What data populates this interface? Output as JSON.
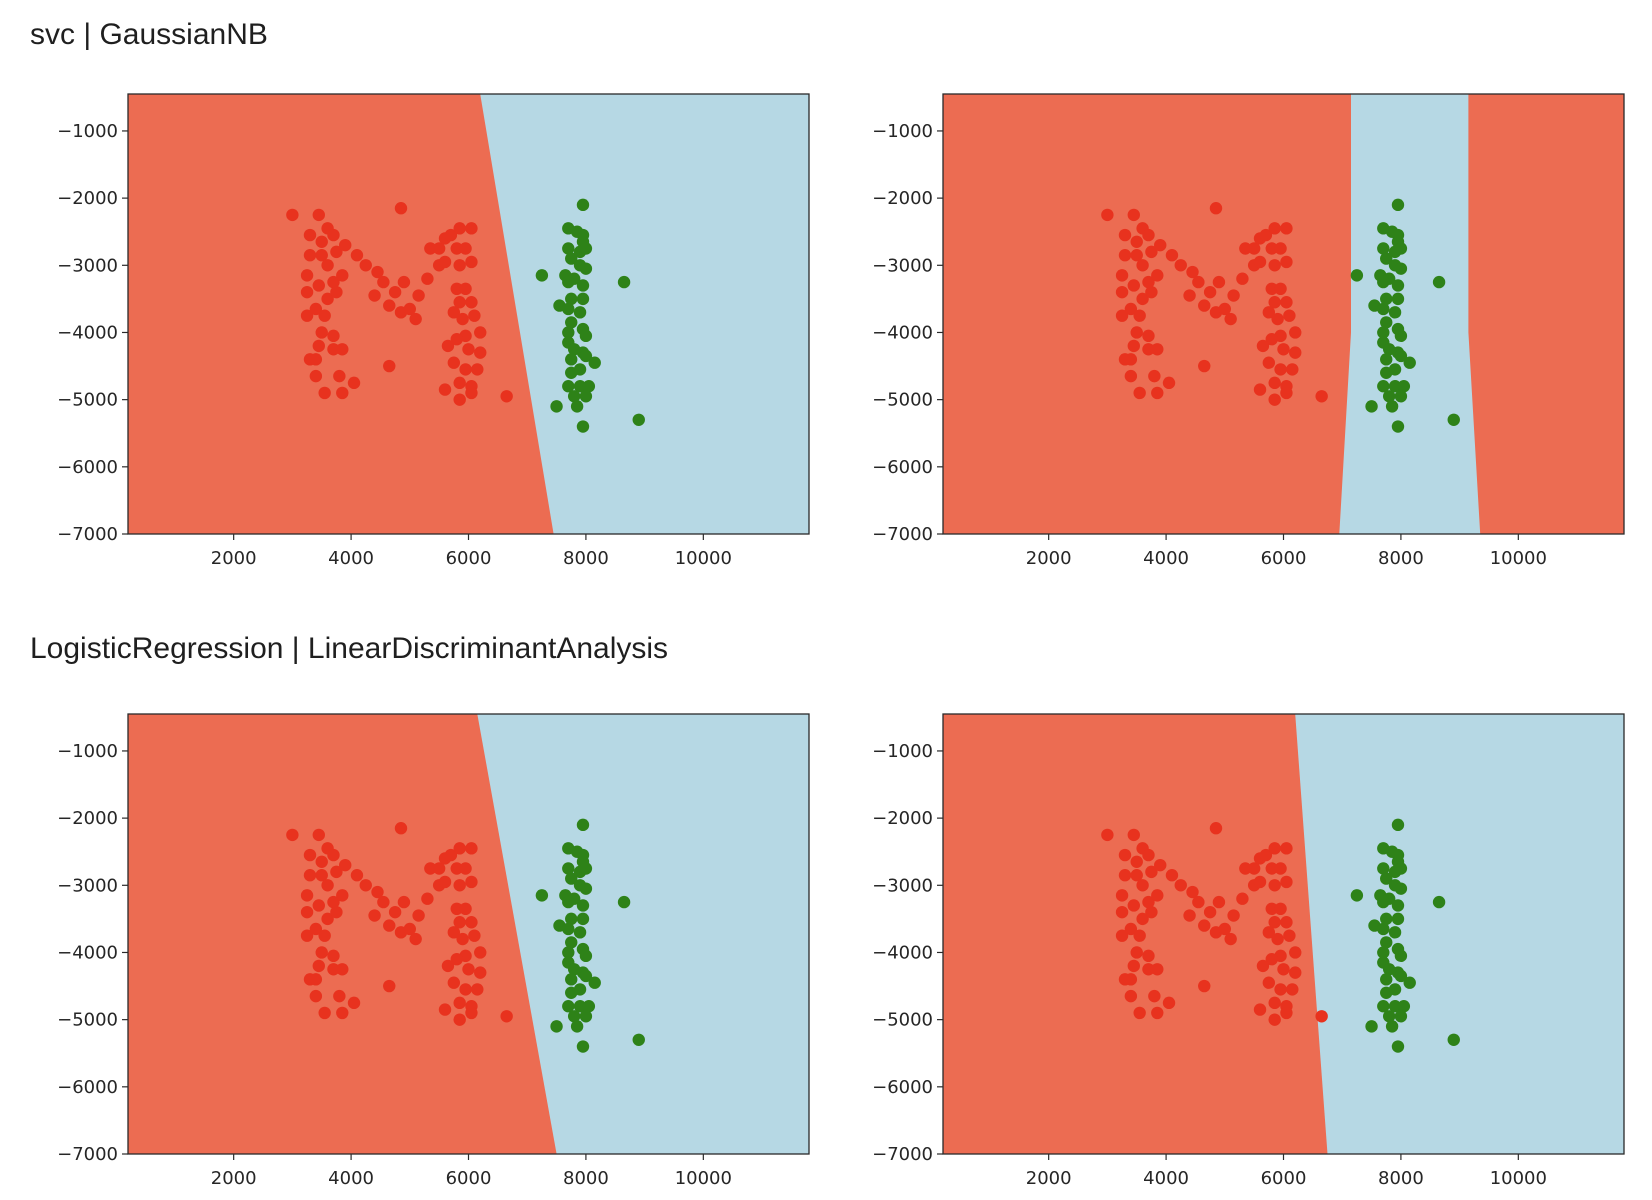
{
  "sections": [
    {
      "title": "svc | GaussianNB"
    },
    {
      "title": "LogisticRegression | LinearDiscriminantAnalysis"
    }
  ],
  "colors": {
    "region_red": "#ec6c52",
    "region_blue": "#b6d8e4",
    "point_red": "#e8321e",
    "point_green": "#2e8218",
    "axes_edge": "#2a2a2a"
  },
  "chart_data": [
    {
      "type": "scatter",
      "subplot": "svc",
      "xlim": [
        200,
        11800
      ],
      "ylim": [
        -7000,
        -450
      ],
      "xticks": [
        2000,
        4000,
        6000,
        8000,
        10000
      ],
      "xtick_labels": [
        "2000",
        "4000",
        "6000",
        "8000",
        "10000"
      ],
      "yticks": [
        -1000,
        -2000,
        -3000,
        -4000,
        -5000,
        -6000,
        -7000
      ],
      "ytick_labels": [
        "−1000",
        "−2000",
        "−3000",
        "−4000",
        "−5000",
        "−6000",
        "−7000"
      ],
      "decision_regions": {
        "boundary": "line",
        "points": [
          [
            6200,
            -450
          ],
          [
            7450,
            -7000
          ]
        ],
        "left": "red",
        "right": "blue"
      },
      "grid": false,
      "legend": "none"
    },
    {
      "type": "scatter",
      "subplot": "GaussianNB",
      "xlim": [
        200,
        11800
      ],
      "ylim": [
        -7000,
        -450
      ],
      "xticks": [
        2000,
        4000,
        6000,
        8000,
        10000
      ],
      "xtick_labels": [
        "2000",
        "4000",
        "6000",
        "8000",
        "10000"
      ],
      "yticks": [
        -1000,
        -2000,
        -3000,
        -4000,
        -5000,
        -6000,
        -7000
      ],
      "ytick_labels": [
        "−1000",
        "−2000",
        "−3000",
        "−4000",
        "−5000",
        "−6000",
        "−7000"
      ],
      "decision_regions": {
        "boundary": "band",
        "left": [
          [
            7150,
            -450
          ],
          [
            7150,
            -4000
          ],
          [
            6950,
            -7000
          ]
        ],
        "right": [
          [
            9150,
            -450
          ],
          [
            9150,
            -4000
          ],
          [
            9350,
            -7000
          ]
        ],
        "outside": "red",
        "inside": "blue"
      },
      "grid": false,
      "legend": "none"
    },
    {
      "type": "scatter",
      "subplot": "LogisticRegression",
      "xlim": [
        200,
        11800
      ],
      "ylim": [
        -7000,
        -450
      ],
      "xticks": [
        2000,
        4000,
        6000,
        8000,
        10000
      ],
      "xtick_labels": [
        "2000",
        "4000",
        "6000",
        "8000",
        "10000"
      ],
      "yticks": [
        -1000,
        -2000,
        -3000,
        -4000,
        -5000,
        -6000,
        -7000
      ],
      "ytick_labels": [
        "−1000",
        "−2000",
        "−3000",
        "−4000",
        "−5000",
        "−6000",
        "−7000"
      ],
      "decision_regions": {
        "boundary": "line",
        "points": [
          [
            6150,
            -450
          ],
          [
            7500,
            -7000
          ]
        ],
        "left": "red",
        "right": "blue"
      },
      "grid": false,
      "legend": "none"
    },
    {
      "type": "scatter",
      "subplot": "LinearDiscriminantAnalysis",
      "xlim": [
        200,
        11800
      ],
      "ylim": [
        -7000,
        -450
      ],
      "xticks": [
        2000,
        4000,
        6000,
        8000,
        10000
      ],
      "xtick_labels": [
        "2000",
        "4000",
        "6000",
        "8000",
        "10000"
      ],
      "yticks": [
        -1000,
        -2000,
        -3000,
        -4000,
        -5000,
        -6000,
        -7000
      ],
      "ytick_labels": [
        "−1000",
        "−2000",
        "−3000",
        "−4000",
        "−5000",
        "−6000",
        "−7000"
      ],
      "decision_regions": {
        "boundary": "line",
        "points": [
          [
            6200,
            -450
          ],
          [
            6750,
            -7000
          ]
        ],
        "left": "red",
        "right": "blue"
      },
      "grid": false,
      "legend": "none"
    }
  ],
  "points": {
    "red": [
      [
        3000,
        -2250
      ],
      [
        3450,
        -2250
      ],
      [
        3300,
        -2550
      ],
      [
        3600,
        -2450
      ],
      [
        3500,
        -2650
      ],
      [
        3700,
        -2550
      ],
      [
        3300,
        -2850
      ],
      [
        3500,
        -2850
      ],
      [
        3750,
        -2800
      ],
      [
        3900,
        -2700
      ],
      [
        3600,
        -3000
      ],
      [
        4100,
        -2850
      ],
      [
        4250,
        -3000
      ],
      [
        4450,
        -3100
      ],
      [
        3250,
        -3150
      ],
      [
        3250,
        -3400
      ],
      [
        3450,
        -3300
      ],
      [
        3700,
        -3250
      ],
      [
        3850,
        -3150
      ],
      [
        3250,
        -3750
      ],
      [
        3400,
        -3650
      ],
      [
        3600,
        -3500
      ],
      [
        3750,
        -3400
      ],
      [
        3550,
        -3750
      ],
      [
        3500,
        -4000
      ],
      [
        3700,
        -4050
      ],
      [
        3450,
        -4200
      ],
      [
        3700,
        -4250
      ],
      [
        3850,
        -4250
      ],
      [
        3300,
        -4400
      ],
      [
        3400,
        -4400
      ],
      [
        3400,
        -4650
      ],
      [
        3800,
        -4650
      ],
      [
        3550,
        -4900
      ],
      [
        3850,
        -4900
      ],
      [
        4050,
        -4750
      ],
      [
        4850,
        -2150
      ],
      [
        4550,
        -3250
      ],
      [
        4400,
        -3450
      ],
      [
        4750,
        -3400
      ],
      [
        4900,
        -3250
      ],
      [
        4650,
        -3600
      ],
      [
        4850,
        -3700
      ],
      [
        5000,
        -3650
      ],
      [
        5150,
        -3450
      ],
      [
        5300,
        -3200
      ],
      [
        5100,
        -3800
      ],
      [
        4650,
        -4500
      ],
      [
        5350,
        -2750
      ],
      [
        5500,
        -2750
      ],
      [
        5600,
        -2600
      ],
      [
        5700,
        -2550
      ],
      [
        5850,
        -2450
      ],
      [
        6050,
        -2450
      ],
      [
        5500,
        -3000
      ],
      [
        5600,
        -2950
      ],
      [
        5800,
        -2750
      ],
      [
        5950,
        -2750
      ],
      [
        6050,
        -2950
      ],
      [
        5850,
        -3000
      ],
      [
        5800,
        -3350
      ],
      [
        5950,
        -3350
      ],
      [
        6050,
        -3550
      ],
      [
        5850,
        -3550
      ],
      [
        5750,
        -3700
      ],
      [
        5900,
        -3800
      ],
      [
        6100,
        -3750
      ],
      [
        6200,
        -4000
      ],
      [
        5950,
        -4050
      ],
      [
        5800,
        -4100
      ],
      [
        5650,
        -4200
      ],
      [
        6000,
        -4250
      ],
      [
        6200,
        -4300
      ],
      [
        5750,
        -4450
      ],
      [
        5950,
        -4550
      ],
      [
        6150,
        -4550
      ],
      [
        5600,
        -4850
      ],
      [
        5850,
        -4750
      ],
      [
        6050,
        -4800
      ],
      [
        5850,
        -5000
      ],
      [
        6050,
        -4900
      ],
      [
        6650,
        -4950
      ]
    ],
    "green": [
      [
        7950,
        -2100
      ],
      [
        7700,
        -2450
      ],
      [
        7850,
        -2500
      ],
      [
        7950,
        -2550
      ],
      [
        7950,
        -2650
      ],
      [
        7700,
        -2750
      ],
      [
        7900,
        -2800
      ],
      [
        8000,
        -2750
      ],
      [
        7750,
        -2900
      ],
      [
        7900,
        -3000
      ],
      [
        8000,
        -3050
      ],
      [
        7250,
        -3150
      ],
      [
        7650,
        -3150
      ],
      [
        7800,
        -3200
      ],
      [
        7700,
        -3250
      ],
      [
        7950,
        -3300
      ],
      [
        8650,
        -3250
      ],
      [
        7750,
        -3500
      ],
      [
        7950,
        -3500
      ],
      [
        7550,
        -3600
      ],
      [
        7700,
        -3650
      ],
      [
        7900,
        -3700
      ],
      [
        7750,
        -3850
      ],
      [
        7950,
        -3950
      ],
      [
        8000,
        -4050
      ],
      [
        7700,
        -4000
      ],
      [
        7700,
        -4150
      ],
      [
        7800,
        -4250
      ],
      [
        7950,
        -4300
      ],
      [
        7750,
        -4400
      ],
      [
        8000,
        -4350
      ],
      [
        8150,
        -4450
      ],
      [
        7900,
        -4550
      ],
      [
        7750,
        -4600
      ],
      [
        7700,
        -4800
      ],
      [
        7900,
        -4800
      ],
      [
        8050,
        -4800
      ],
      [
        7800,
        -4950
      ],
      [
        8000,
        -4950
      ],
      [
        7500,
        -5100
      ],
      [
        7850,
        -5100
      ],
      [
        7950,
        -5400
      ],
      [
        8900,
        -5300
      ]
    ]
  }
}
